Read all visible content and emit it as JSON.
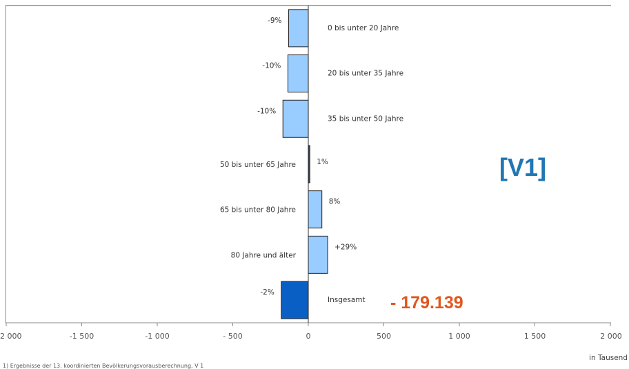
{
  "chart_data": {
    "type": "bar",
    "orientation": "horizontal",
    "categories": [
      "0 bis unter 20 Jahre",
      "20 bis unter 35 Jahre",
      "35 bis unter 50 Jahre",
      "50 bis unter 65 Jahre",
      "65 bis unter 80 Jahre",
      "80 Jahre und älter",
      "Insgesamt"
    ],
    "values": [
      -130,
      -135,
      -168,
      10,
      90,
      128,
      -179
    ],
    "percent_labels": [
      "-9%",
      "-10%",
      "-10%",
      "1%",
      "8%",
      "+29%",
      "-2%"
    ],
    "bar_colors": [
      "#99ccff",
      "#99ccff",
      "#99ccff",
      "#3d4a63",
      "#99ccff",
      "#99ccff",
      "#0a5fc5"
    ],
    "xlim": [
      -2000,
      2000
    ],
    "x_ticks": [
      "2 000",
      "-1 500",
      "-1 000",
      "- 500",
      "0",
      "500",
      "1 000",
      "1 500",
      "2 000"
    ],
    "x_tick_values": [
      -2000,
      -1500,
      -1000,
      -500,
      0,
      500,
      1000,
      1500,
      2000
    ],
    "xlabel": "in Tausend",
    "footnote": "1) Ergebnisse der 13. koordinierten Bevölkerungsvorausberechnung, V 1"
  },
  "overlay": {
    "version_label": "[V1]",
    "total_value": "- 179.139",
    "version_color": "#1f77b4",
    "total_color": "#e0561d"
  }
}
